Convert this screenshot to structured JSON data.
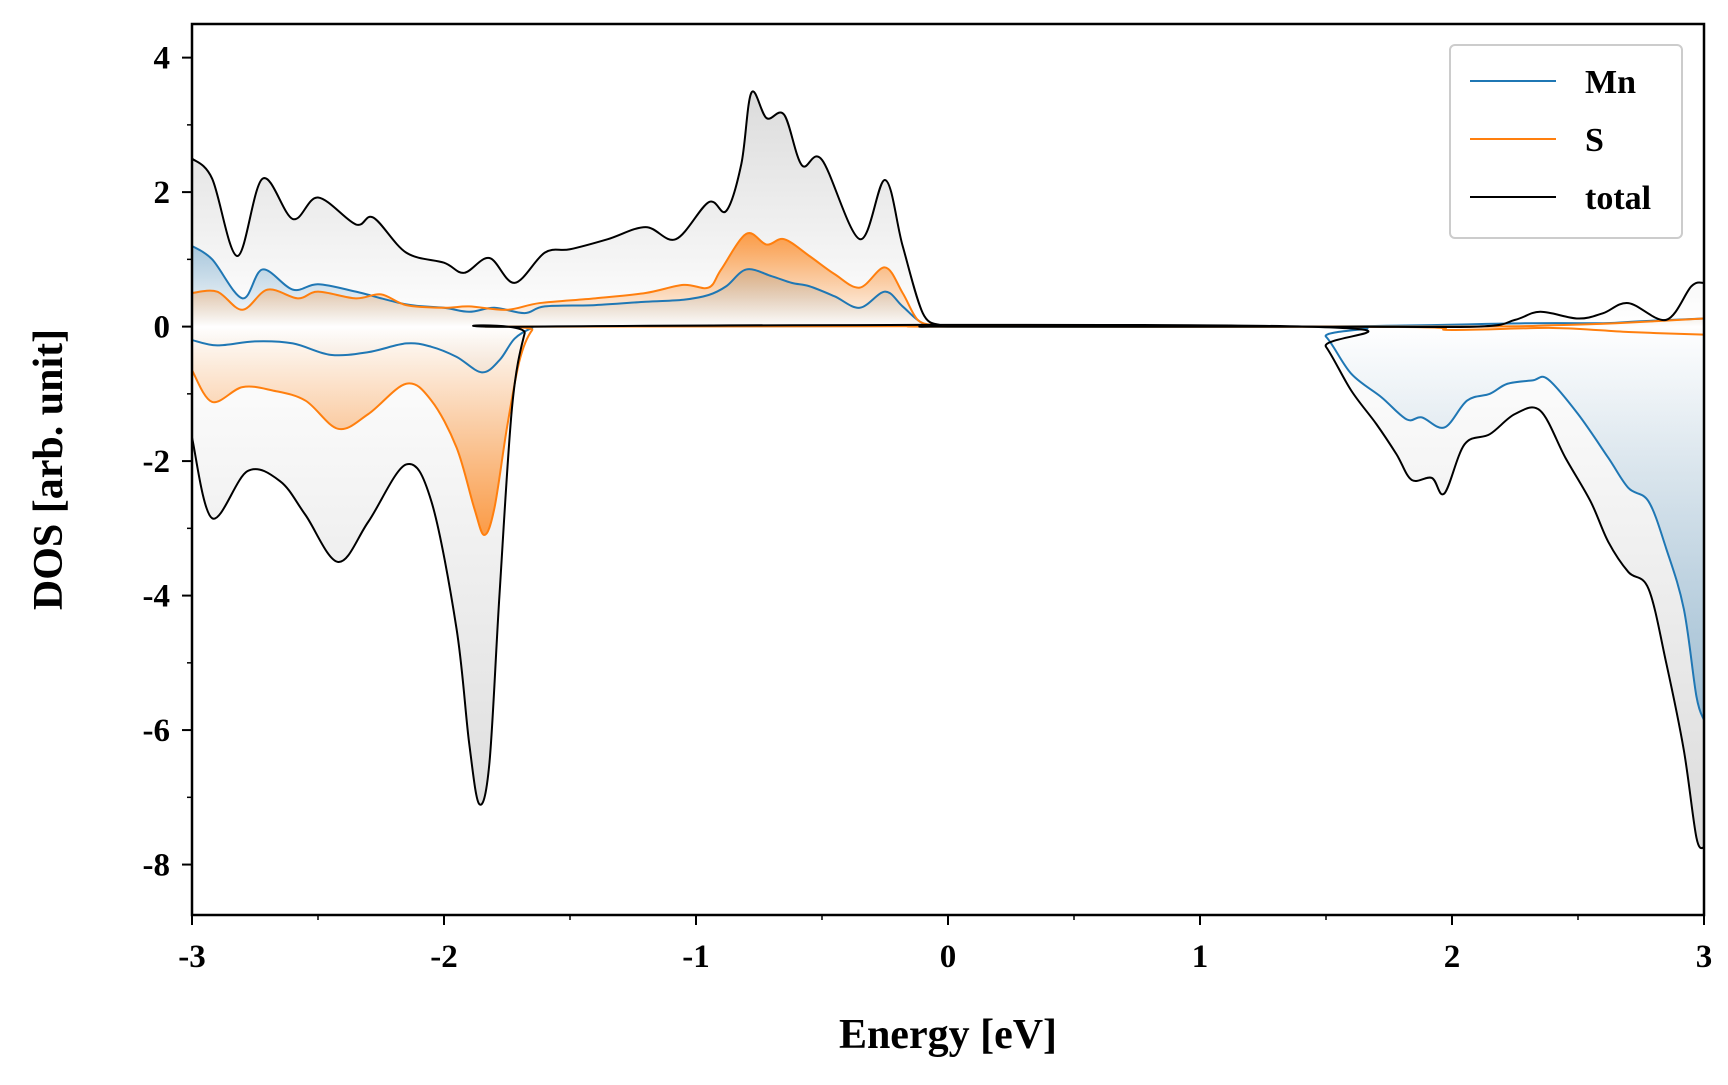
{
  "chart_data": {
    "type": "line",
    "title": "",
    "xlabel": "Energy [eV]",
    "ylabel": "DOS [arb. unit]",
    "xlim": [
      -3,
      3
    ],
    "ylim": [
      -8.75,
      4.5
    ],
    "x_ticks": [
      -3,
      -2,
      -1,
      0,
      1,
      2,
      3
    ],
    "x_tick_labels": [
      "-3",
      "-2",
      "-1",
      "0",
      "1",
      "2",
      "3"
    ],
    "y_ticks": [
      4,
      2,
      0,
      -2,
      -4,
      -6,
      -8
    ],
    "y_tick_labels": [
      "4",
      "2",
      "0",
      "-2",
      "-4",
      "-6",
      "-8"
    ],
    "grid": false,
    "legend_position": "top-right",
    "fills": "spin-up and spin-down channels filled to zero with gradient",
    "series": [
      {
        "name": "Mn",
        "color": "#1f77b4",
        "up": [
          [
            -3,
            1.2
          ],
          [
            -2.92,
            1.0
          ],
          [
            -2.8,
            0.42
          ],
          [
            -2.72,
            0.85
          ],
          [
            -2.6,
            0.55
          ],
          [
            -2.5,
            0.63
          ],
          [
            -2.35,
            0.52
          ],
          [
            -2.15,
            0.33
          ],
          [
            -2,
            0.28
          ],
          [
            -1.9,
            0.22
          ],
          [
            -1.8,
            0.28
          ],
          [
            -1.68,
            0.2
          ],
          [
            -1.6,
            0.3
          ],
          [
            -1.4,
            0.32
          ],
          [
            -1.2,
            0.37
          ],
          [
            -1.05,
            0.4
          ],
          [
            -0.95,
            0.47
          ],
          [
            -0.88,
            0.6
          ],
          [
            -0.8,
            0.85
          ],
          [
            -0.7,
            0.75
          ],
          [
            -0.62,
            0.65
          ],
          [
            -0.55,
            0.6
          ],
          [
            -0.45,
            0.45
          ],
          [
            -0.35,
            0.28
          ],
          [
            -0.25,
            0.52
          ],
          [
            -0.18,
            0.3
          ],
          [
            -0.1,
            0.05
          ],
          [
            0,
            0
          ],
          [
            1.45,
            0
          ],
          [
            2.3,
            0.05
          ],
          [
            2.6,
            0.05
          ],
          [
            2.75,
            0.08
          ],
          [
            3,
            0.12
          ]
        ],
        "down": [
          [
            -3,
            -0.2
          ],
          [
            -2.9,
            -0.28
          ],
          [
            -2.75,
            -0.22
          ],
          [
            -2.6,
            -0.25
          ],
          [
            -2.45,
            -0.42
          ],
          [
            -2.3,
            -0.38
          ],
          [
            -2.15,
            -0.25
          ],
          [
            -2.05,
            -0.3
          ],
          [
            -1.95,
            -0.45
          ],
          [
            -1.85,
            -0.68
          ],
          [
            -1.78,
            -0.5
          ],
          [
            -1.72,
            -0.18
          ],
          [
            -1.65,
            -0.02
          ],
          [
            -1.6,
            0
          ],
          [
            1.42,
            0
          ],
          [
            1.5,
            -0.15
          ],
          [
            1.6,
            -0.7
          ],
          [
            1.72,
            -1.05
          ],
          [
            1.82,
            -1.38
          ],
          [
            1.88,
            -1.35
          ],
          [
            1.97,
            -1.5
          ],
          [
            2.06,
            -1.1
          ],
          [
            2.15,
            -1.0
          ],
          [
            2.22,
            -0.85
          ],
          [
            2.32,
            -0.8
          ],
          [
            2.38,
            -0.78
          ],
          [
            2.5,
            -1.3
          ],
          [
            2.62,
            -1.95
          ],
          [
            2.7,
            -2.4
          ],
          [
            2.78,
            -2.6
          ],
          [
            2.85,
            -3.3
          ],
          [
            2.92,
            -4.2
          ],
          [
            2.97,
            -5.5
          ],
          [
            3,
            -5.85
          ]
        ]
      },
      {
        "name": "S",
        "color": "#ff7f0e",
        "up": [
          [
            -3,
            0.5
          ],
          [
            -2.9,
            0.52
          ],
          [
            -2.8,
            0.25
          ],
          [
            -2.7,
            0.55
          ],
          [
            -2.58,
            0.42
          ],
          [
            -2.5,
            0.52
          ],
          [
            -2.35,
            0.42
          ],
          [
            -2.25,
            0.48
          ],
          [
            -2.15,
            0.32
          ],
          [
            -2,
            0.28
          ],
          [
            -1.9,
            0.3
          ],
          [
            -1.75,
            0.25
          ],
          [
            -1.62,
            0.35
          ],
          [
            -1.4,
            0.42
          ],
          [
            -1.2,
            0.5
          ],
          [
            -1.05,
            0.62
          ],
          [
            -0.95,
            0.58
          ],
          [
            -0.9,
            0.85
          ],
          [
            -0.8,
            1.38
          ],
          [
            -0.72,
            1.22
          ],
          [
            -0.65,
            1.3
          ],
          [
            -0.55,
            1.05
          ],
          [
            -0.45,
            0.78
          ],
          [
            -0.35,
            0.58
          ],
          [
            -0.25,
            0.88
          ],
          [
            -0.18,
            0.5
          ],
          [
            -0.12,
            0.1
          ],
          [
            -0.05,
            0.02
          ],
          [
            0,
            0
          ],
          [
            2,
            0
          ],
          [
            2.4,
            0.02
          ],
          [
            2.65,
            0.05
          ],
          [
            3,
            0.12
          ]
        ],
        "down": [
          [
            -3,
            -0.65
          ],
          [
            -2.92,
            -1.12
          ],
          [
            -2.8,
            -0.9
          ],
          [
            -2.68,
            -0.95
          ],
          [
            -2.55,
            -1.1
          ],
          [
            -2.42,
            -1.52
          ],
          [
            -2.3,
            -1.3
          ],
          [
            -2.15,
            -0.85
          ],
          [
            -2.05,
            -1.1
          ],
          [
            -1.95,
            -1.8
          ],
          [
            -1.88,
            -2.7
          ],
          [
            -1.84,
            -3.1
          ],
          [
            -1.8,
            -2.7
          ],
          [
            -1.75,
            -1.5
          ],
          [
            -1.7,
            -0.5
          ],
          [
            -1.65,
            -0.05
          ],
          [
            -1.6,
            0
          ],
          [
            1.6,
            0
          ],
          [
            2,
            -0.05
          ],
          [
            2.4,
            -0.02
          ],
          [
            2.7,
            -0.08
          ],
          [
            3,
            -0.12
          ]
        ]
      },
      {
        "name": "total",
        "color": "#000000",
        "up": [
          [
            -3,
            2.5
          ],
          [
            -2.92,
            2.2
          ],
          [
            -2.82,
            1.05
          ],
          [
            -2.72,
            2.2
          ],
          [
            -2.6,
            1.6
          ],
          [
            -2.5,
            1.92
          ],
          [
            -2.35,
            1.52
          ],
          [
            -2.28,
            1.62
          ],
          [
            -2.15,
            1.1
          ],
          [
            -2,
            0.95
          ],
          [
            -1.92,
            0.8
          ],
          [
            -1.82,
            1.02
          ],
          [
            -1.72,
            0.65
          ],
          [
            -1.6,
            1.1
          ],
          [
            -1.5,
            1.15
          ],
          [
            -1.35,
            1.3
          ],
          [
            -1.2,
            1.48
          ],
          [
            -1.08,
            1.3
          ],
          [
            -0.95,
            1.85
          ],
          [
            -0.88,
            1.72
          ],
          [
            -0.82,
            2.42
          ],
          [
            -0.78,
            3.48
          ],
          [
            -0.72,
            3.1
          ],
          [
            -0.65,
            3.15
          ],
          [
            -0.58,
            2.4
          ],
          [
            -0.5,
            2.48
          ],
          [
            -0.35,
            1.3
          ],
          [
            -0.25,
            2.18
          ],
          [
            -0.18,
            1.2
          ],
          [
            -0.1,
            0.2
          ],
          [
            -0.03,
            0.02
          ],
          [
            0,
            0
          ],
          [
            1.45,
            0
          ],
          [
            2.1,
            0
          ],
          [
            2.25,
            0.1
          ],
          [
            2.35,
            0.22
          ],
          [
            2.5,
            0.12
          ],
          [
            2.6,
            0.2
          ],
          [
            2.7,
            0.35
          ],
          [
            2.85,
            0.1
          ],
          [
            2.95,
            0.6
          ],
          [
            3,
            0.65
          ]
        ],
        "down": [
          [
            -3,
            -1.65
          ],
          [
            -2.92,
            -2.85
          ],
          [
            -2.78,
            -2.15
          ],
          [
            -2.65,
            -2.3
          ],
          [
            -2.55,
            -2.8
          ],
          [
            -2.42,
            -3.5
          ],
          [
            -2.3,
            -2.9
          ],
          [
            -2.15,
            -2.05
          ],
          [
            -2.05,
            -2.6
          ],
          [
            -1.95,
            -4.5
          ],
          [
            -1.9,
            -6.2
          ],
          [
            -1.86,
            -7.1
          ],
          [
            -1.82,
            -6.5
          ],
          [
            -1.78,
            -4.0
          ],
          [
            -1.73,
            -1.2
          ],
          [
            -1.68,
            -0.1
          ],
          [
            -1.65,
            0
          ],
          [
            1.42,
            0
          ],
          [
            1.5,
            -0.3
          ],
          [
            1.6,
            -0.95
          ],
          [
            1.7,
            -1.45
          ],
          [
            1.78,
            -1.9
          ],
          [
            1.84,
            -2.28
          ],
          [
            1.92,
            -2.25
          ],
          [
            1.97,
            -2.48
          ],
          [
            2.05,
            -1.75
          ],
          [
            2.15,
            -1.6
          ],
          [
            2.25,
            -1.3
          ],
          [
            2.35,
            -1.25
          ],
          [
            2.45,
            -1.95
          ],
          [
            2.55,
            -2.6
          ],
          [
            2.62,
            -3.2
          ],
          [
            2.7,
            -3.65
          ],
          [
            2.78,
            -3.9
          ],
          [
            2.85,
            -5.0
          ],
          [
            2.92,
            -6.3
          ],
          [
            2.97,
            -7.6
          ],
          [
            3,
            -7.75
          ]
        ]
      }
    ]
  }
}
